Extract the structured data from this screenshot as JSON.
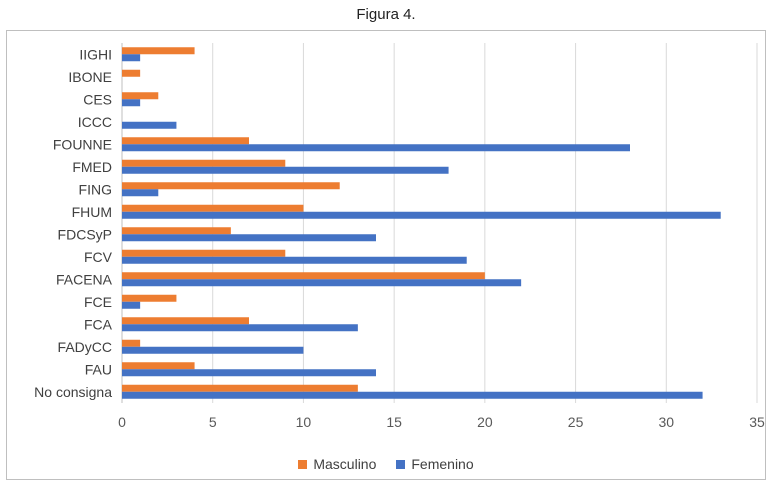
{
  "title": "Figura 4.",
  "colors": {
    "masculino": "#ED7D31",
    "femenino": "#4472C4",
    "grid": "#d9d9d9"
  },
  "chart_data": {
    "type": "bar",
    "orientation": "horizontal",
    "categories": [
      "IIGHI",
      "IBONE",
      "CES",
      "ICCC",
      "FOUNNE",
      "FMED",
      "FING",
      "FHUM",
      "FDCSyP",
      "FCV",
      "FACENA",
      "FCE",
      "FCA",
      "FADyCC",
      "FAU",
      "No consigna"
    ],
    "series": [
      {
        "name": "Masculino",
        "values": [
          4,
          1,
          2,
          0,
          7,
          9,
          12,
          10,
          6,
          9,
          20,
          3,
          7,
          1,
          4,
          13
        ]
      },
      {
        "name": "Femenino",
        "values": [
          1,
          0,
          1,
          3,
          28,
          18,
          2,
          33,
          14,
          19,
          22,
          1,
          13,
          10,
          14,
          32
        ]
      }
    ],
    "xlim": [
      0,
      35
    ],
    "xticks": [
      "0",
      "5",
      "10",
      "15",
      "20",
      "25",
      "30",
      "35"
    ],
    "grid": true,
    "legend_position": "bottom"
  }
}
